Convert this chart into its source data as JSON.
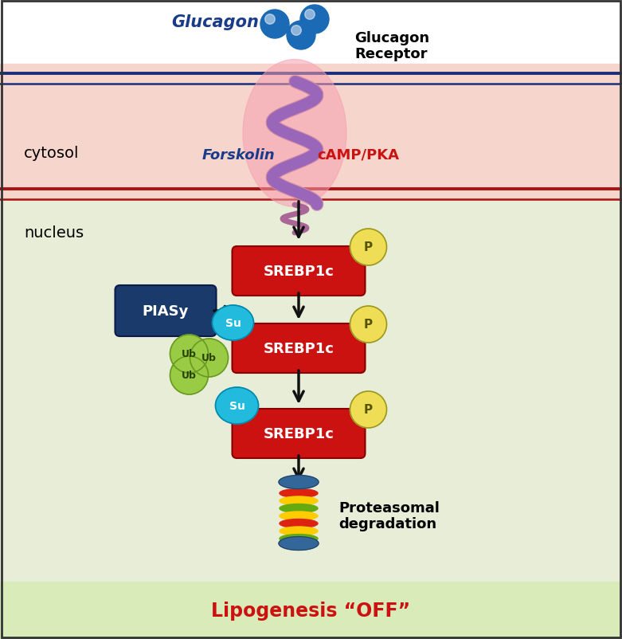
{
  "bg_white": "#ffffff",
  "bg_membrane": "#f5d5cc",
  "bg_nucleus": "#e8edd8",
  "bg_bottom_bar": "#d8ebb8",
  "membrane_top_line_color": "#1a2f7a",
  "membrane_bottom_line_color": "#aa1111",
  "cytosol_label": "cytosol",
  "nucleus_label": "nucleus",
  "glucagon_label": "Glucagon",
  "receptor_label": "Glucagon\nReceptor",
  "forskolin_label": "Forskolin",
  "camp_label": "cAMP/PKA",
  "srebp_label": "SREBP1c",
  "piasy_label": "PIASy",
  "su_label": "Su",
  "ub_label": "Ub",
  "p_label": "P",
  "proteasome_label": "Proteasomal\ndegradation",
  "lipogenesis_label": "Lipogenesis “OFF”",
  "srebp_color": "#cc1111",
  "piasy_color": "#1a3a6b",
  "su_color": "#22bbdd",
  "ub_color": "#99cc44",
  "p_color": "#eedd55",
  "glucagon_dot_color": "#1a6ab5",
  "receptor_color_fill": "#e07090",
  "receptor_color_line": "#9955aa",
  "arrow_color": "#111111",
  "lipogenesis_color": "#cc1111",
  "glucagon_text_color": "#1a3a8a",
  "camp_text_color": "#cc1111",
  "forskolin_text_color": "#1a3a8a",
  "border_color": "#333333",
  "fig_w": 7.81,
  "fig_h": 8.03,
  "dpi": 100
}
